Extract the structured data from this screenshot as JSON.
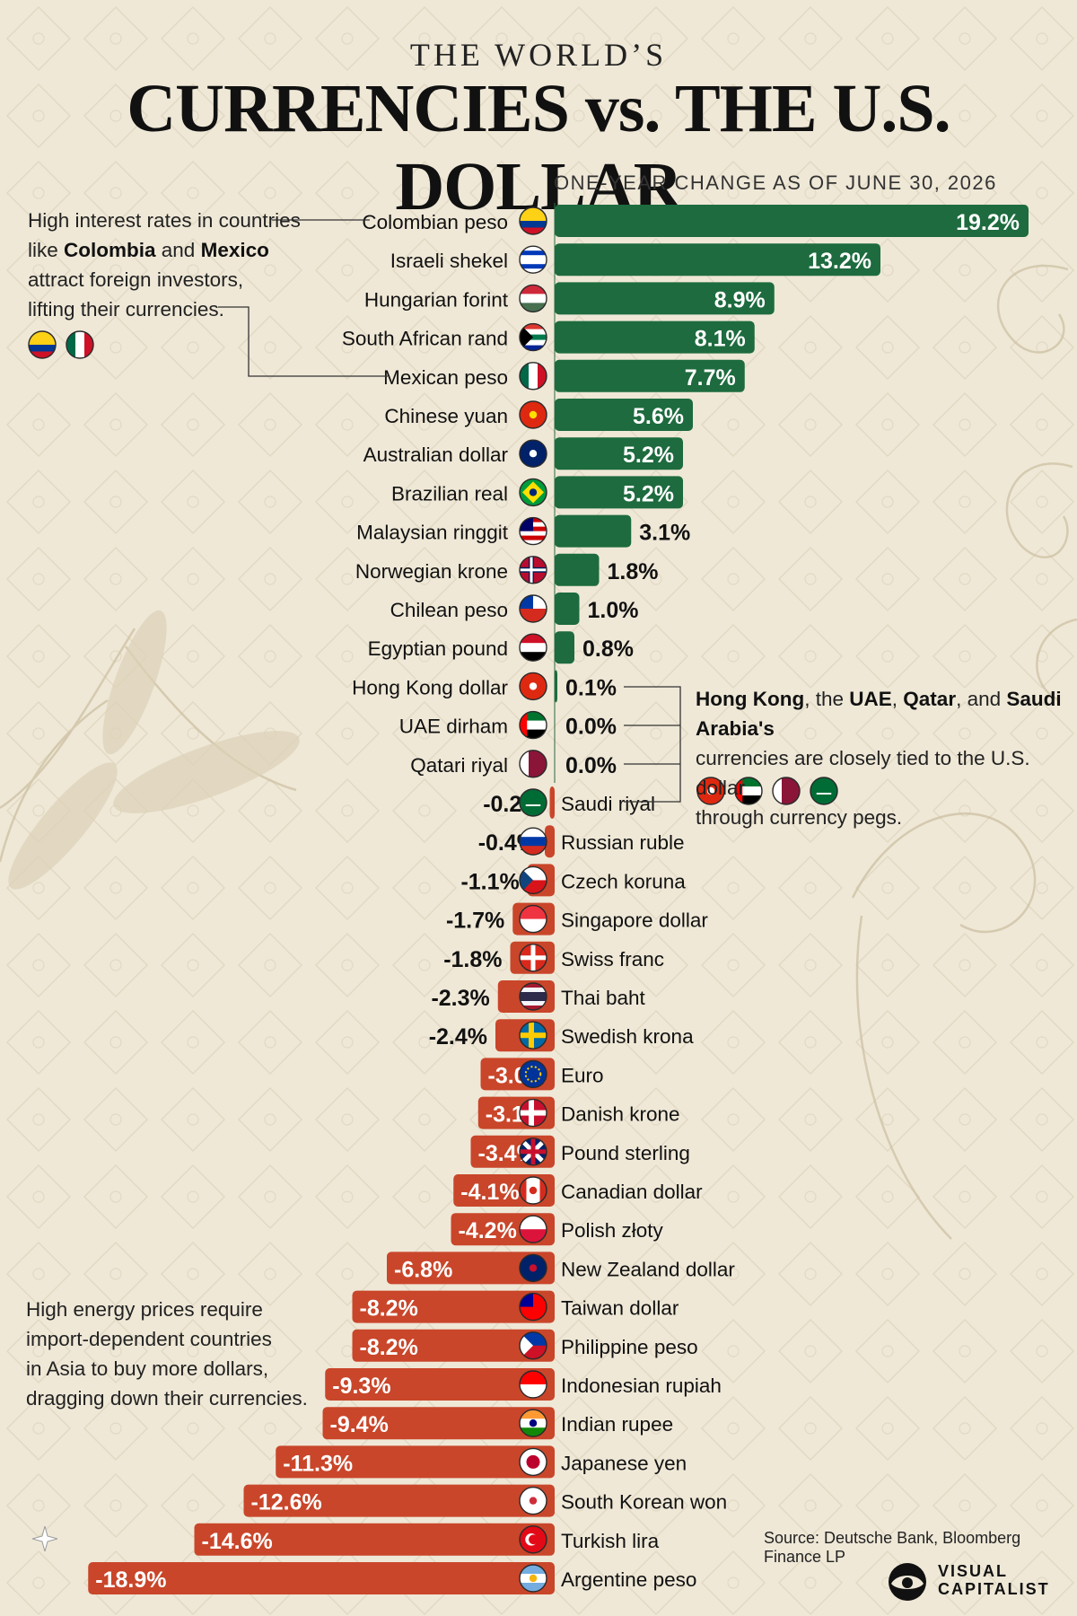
{
  "header": {
    "title_top": "THE WORLD’S",
    "title_main": "CURRENCIES vs. THE U.S. DOLLAR",
    "subtitle": "ONE-YEAR CHANGE AS OF JUNE 30, 2026"
  },
  "colors": {
    "positive_bar": "#1d6b3e",
    "negative_bar": "#c9462a",
    "background": "#efe8d7"
  },
  "annotations": {
    "left_top": {
      "line1": "High interest rates in countries",
      "line2_a": "like ",
      "line2_b": "Colombia",
      "line2_c": " and ",
      "line2_d": "Mexico",
      "line3": "attract foreign investors,",
      "line4": "lifting their currencies.",
      "flags": [
        "colombia-flag-icon",
        "mexico-flag-icon"
      ]
    },
    "right_peg": {
      "p1": "Hong Kong",
      "p2": ", the ",
      "p3": "UAE",
      "p4": ", ",
      "p5": "Qatar",
      "p6": ", and ",
      "p7": "Saudi Arabia's",
      "line2": "currencies are closely tied to the U.S. dollar",
      "line3": "through currency pegs.",
      "flags": [
        "hong-kong-flag-icon",
        "uae-flag-icon",
        "qatar-flag-icon",
        "saudi-flag-icon"
      ]
    },
    "left_bottom": {
      "line1": "High energy prices require",
      "line2": "import-dependent countries",
      "line3": "in Asia to buy more dollars,",
      "line4": "dragging down their currencies."
    }
  },
  "footer": {
    "source": "Source: Deutsche Bank, Bloomberg Finance LP",
    "logo_line1": "VISUAL",
    "logo_line2": "CAPITALIST"
  },
  "chart_data": {
    "type": "bar",
    "orientation": "horizontal",
    "title": "CURRENCIES vs. THE U.S. DOLLAR",
    "subtitle": "ONE-YEAR CHANGE AS OF JUNE 30, 2026",
    "unit": "%",
    "categories": [
      "Colombian peso",
      "Israeli shekel",
      "Hungarian forint",
      "South African rand",
      "Mexican peso",
      "Chinese yuan",
      "Australian dollar",
      "Brazilian real",
      "Malaysian ringgit",
      "Norwegian krone",
      "Chilean peso",
      "Egyptian pound",
      "Hong Kong dollar",
      "UAE dirham",
      "Qatari riyal",
      "Saudi riyal",
      "Russian ruble",
      "Czech koruna",
      "Singapore dollar",
      "Swiss franc",
      "Thai baht",
      "Swedish krona",
      "Euro",
      "Danish krone",
      "Pound sterling",
      "Canadian dollar",
      "Polish złoty",
      "New Zealand dollar",
      "Taiwan dollar",
      "Philippine peso",
      "Indonesian rupiah",
      "Indian rupee",
      "Japanese yen",
      "South Korean won",
      "Turkish lira",
      "Argentine peso"
    ],
    "values": [
      19.2,
      13.2,
      8.9,
      8.1,
      7.7,
      5.6,
      5.2,
      5.2,
      3.1,
      1.8,
      1.0,
      0.8,
      0.1,
      0.0,
      0.0,
      -0.2,
      -0.4,
      -1.1,
      -1.7,
      -1.8,
      -2.3,
      -2.4,
      -3.0,
      -3.1,
      -3.4,
      -4.1,
      -4.2,
      -6.8,
      -8.2,
      -8.2,
      -9.3,
      -9.4,
      -11.3,
      -12.6,
      -14.6,
      -18.9
    ],
    "labels": [
      "19.2%",
      "13.2%",
      "8.9%",
      "8.1%",
      "7.7%",
      "5.6%",
      "5.2%",
      "5.2%",
      "3.1%",
      "1.8%",
      "1.0%",
      "0.8%",
      "0.1%",
      "0.0%",
      "0.0%",
      "-0.2%",
      "-0.4%",
      "-1.1%",
      "-1.7%",
      "-1.8%",
      "-2.3%",
      "-2.4%",
      "-3.0%",
      "-3.1%",
      "-3.4%",
      "-4.1%",
      "-4.2%",
      "-6.8%",
      "-8.2%",
      "-8.2%",
      "-9.3%",
      "-9.4%",
      "-11.3%",
      "-12.6%",
      "-14.6%",
      "-18.9%"
    ],
    "flags": [
      "colombia-flag-icon",
      "israel-flag-icon",
      "hungary-flag-icon",
      "south-africa-flag-icon",
      "mexico-flag-icon",
      "china-flag-icon",
      "australia-flag-icon",
      "brazil-flag-icon",
      "malaysia-flag-icon",
      "norway-flag-icon",
      "chile-flag-icon",
      "egypt-flag-icon",
      "hong-kong-flag-icon",
      "uae-flag-icon",
      "qatar-flag-icon",
      "saudi-flag-icon",
      "russia-flag-icon",
      "czech-flag-icon",
      "singapore-flag-icon",
      "switzerland-flag-icon",
      "thailand-flag-icon",
      "sweden-flag-icon",
      "eu-flag-icon",
      "denmark-flag-icon",
      "uk-flag-icon",
      "canada-flag-icon",
      "poland-flag-icon",
      "new-zealand-flag-icon",
      "taiwan-flag-icon",
      "philippines-flag-icon",
      "indonesia-flag-icon",
      "india-flag-icon",
      "japan-flag-icon",
      "south-korea-flag-icon",
      "turkey-flag-icon",
      "argentina-flag-icon"
    ],
    "grid": false,
    "legend": "none"
  }
}
